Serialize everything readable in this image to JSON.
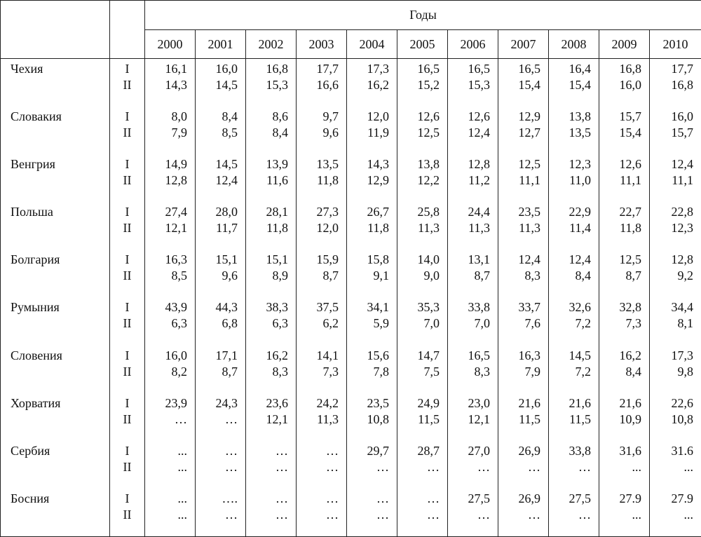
{
  "header": {
    "years_label": "Годы",
    "years": [
      "2000",
      "2001",
      "2002",
      "2003",
      "2004",
      "2005",
      "2006",
      "2007",
      "2008",
      "2009",
      "2010"
    ]
  },
  "rows": [
    {
      "country": "Чехия",
      "marks": [
        "I",
        "II"
      ],
      "I": [
        "16,1",
        "16,0",
        "16,8",
        "17,7",
        "17,3",
        "16,5",
        "16,5",
        "16,5",
        "16,4",
        "16,8",
        "17,7"
      ],
      "II": [
        "14,3",
        "14,5",
        "15,3",
        "16,6",
        "16,2",
        "15,2",
        "15,3",
        "15,4",
        "15,4",
        "16,0",
        "16,8"
      ]
    },
    {
      "country": "Словакия",
      "marks": [
        "I",
        "II"
      ],
      "I": [
        "8,0",
        "8,4",
        "8,6",
        "9,7",
        "12,0",
        "12,6",
        "12,6",
        "12,9",
        "13,8",
        "15,7",
        "16,0"
      ],
      "II": [
        "7,9",
        "8,5",
        "8,4",
        "9,6",
        "11,9",
        "12,5",
        "12,4",
        "12,7",
        "13,5",
        "15,4",
        "15,7"
      ]
    },
    {
      "country": "Венгрия",
      "marks": [
        "I",
        "II"
      ],
      "I": [
        "14,9",
        "14,5",
        "13,9",
        "13,5",
        "14,3",
        "13,8",
        "12,8",
        "12,5",
        "12,3",
        "12,6",
        "12,4"
      ],
      "II": [
        "12,8",
        "12,4",
        "11,6",
        "11,8",
        "12,9",
        "12,2",
        "11,2",
        "11,1",
        "11,0",
        "11,1",
        "11,1"
      ]
    },
    {
      "country": "Польша",
      "marks": [
        "I",
        "II"
      ],
      "I": [
        "27,4",
        "28,0",
        "28,1",
        "27,3",
        "26,7",
        "25,8",
        "24,4",
        "23,5",
        "22,9",
        "22,7",
        "22,8"
      ],
      "II": [
        "12,1",
        "11,7",
        "11,8",
        "12,0",
        "11,8",
        "11,3",
        "11,3",
        "11,3",
        "11,4",
        "11,8",
        "12,3"
      ]
    },
    {
      "country": "Болгария",
      "marks": [
        "I",
        "II"
      ],
      "I": [
        "16,3",
        "15,1",
        "15,1",
        "15,9",
        "15,8",
        "14,0",
        "13,1",
        "12,4",
        "12,4",
        "12,5",
        "12,8"
      ],
      "II": [
        "8,5",
        "9,6",
        "8,9",
        "8,7",
        "9,1",
        "9,0",
        "8,7",
        "8,3",
        "8,4",
        "8,7",
        "9,2"
      ]
    },
    {
      "country": "Румыния",
      "marks": [
        "I",
        "II"
      ],
      "I": [
        "43,9",
        "44,3",
        "38,3",
        "37,5",
        "34,1",
        "35,3",
        "33,8",
        "33,7",
        "32,6",
        "32,8",
        "34,4"
      ],
      "II": [
        "6,3",
        "6,8",
        "6,3",
        "6,2",
        "5,9",
        "7,0",
        "7,0",
        "7,6",
        "7,2",
        "7,3",
        "8,1"
      ]
    },
    {
      "country": "Словения",
      "marks": [
        "I",
        "II"
      ],
      "I": [
        "16,0",
        "17,1",
        "16,2",
        "14,1",
        "15,6",
        "14,7",
        "16,5",
        "16,3",
        "14,5",
        "16,2",
        "17,3"
      ],
      "II": [
        "8,2",
        "8,7",
        "8,3",
        "7,3",
        "7,8",
        "7,5",
        "8,3",
        "7,9",
        "7,2",
        "8,4",
        "9,8"
      ]
    },
    {
      "country": "Хорватия",
      "marks": [
        "I",
        "II"
      ],
      "I": [
        "23,9",
        "24,3",
        "23,6",
        "24,2",
        "23,5",
        "24,9",
        "23,0",
        "21,6",
        "21,6",
        "21,6",
        "22,6"
      ],
      "II": [
        "…",
        "…",
        "12,1",
        "11,3",
        "10,8",
        "11,5",
        "12,1",
        "11,5",
        "11,5",
        "10,9",
        "10,8"
      ]
    },
    {
      "country": "Сербия",
      "marks": [
        "I",
        "II"
      ],
      "I": [
        "...",
        "…",
        "…",
        "…",
        "29,7",
        "28,7",
        "27,0",
        "26,9",
        "33,8",
        "31,6",
        "31.6"
      ],
      "II": [
        "...",
        "…",
        "…",
        "…",
        "…",
        "…",
        "…",
        "…",
        "…",
        "...",
        "..."
      ]
    },
    {
      "country": "Босния",
      "marks": [
        "I",
        "II"
      ],
      "I": [
        "...",
        "….",
        "…",
        "…",
        "…",
        "…",
        "27,5",
        "26,9",
        "27,5",
        "27.9",
        "27.9"
      ],
      "II": [
        "...",
        "…",
        "…",
        "…",
        "…",
        "…",
        "…",
        "…",
        "…",
        "...",
        "..."
      ]
    }
  ]
}
